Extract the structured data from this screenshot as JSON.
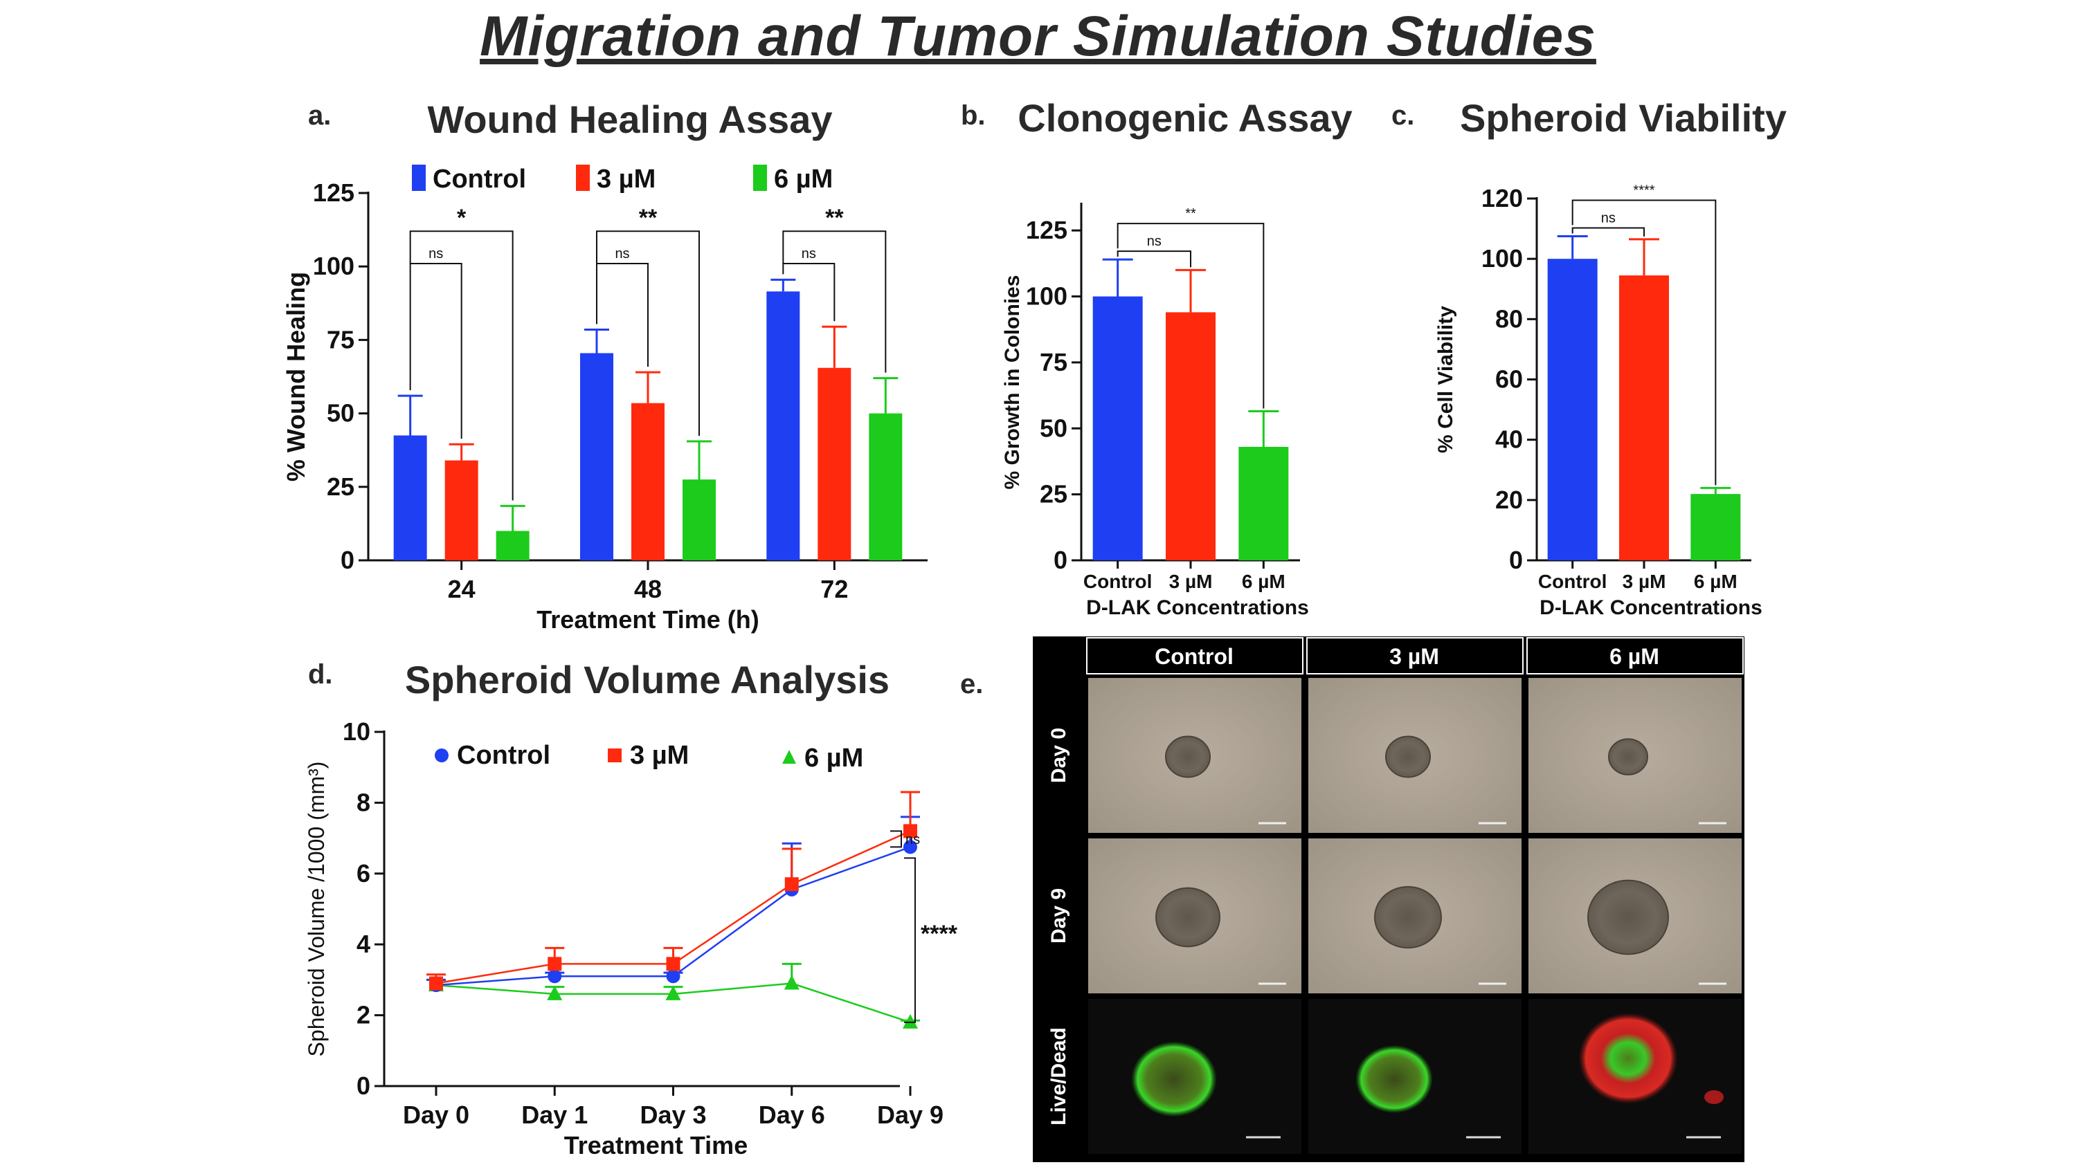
{
  "title": "Migration and Tumor Simulation Studies",
  "colors": {
    "control": "#1f3ff2",
    "low": "#ff2a0d",
    "high": "#1ccb1c"
  },
  "chart_data": [
    {
      "id": "a",
      "letter": "a.",
      "type": "bar",
      "title": "Wound Healing Assay",
      "xlabel": "Treatment Time (h)",
      "ylabel": "% Wound Healing",
      "categories": [
        "24",
        "48",
        "72"
      ],
      "ylim": [
        0,
        125
      ],
      "yticks": [
        0,
        25,
        50,
        75,
        100,
        125
      ],
      "legend_position": "top",
      "series": [
        {
          "name": "Control",
          "color_key": "control",
          "values": [
            42.5,
            70.5,
            91.5
          ],
          "errors": [
            13.5,
            8.0,
            4.0
          ]
        },
        {
          "name": "3 µM",
          "color_key": "low",
          "values": [
            34.0,
            53.5,
            65.5
          ],
          "errors": [
            5.5,
            10.5,
            14.0
          ]
        },
        {
          "name": "6 µM",
          "color_key": "high",
          "values": [
            10.0,
            27.5,
            50.0
          ],
          "errors": [
            8.5,
            13.0,
            12.0
          ]
        }
      ],
      "significance": [
        {
          "category": "24",
          "pair": [
            "Control",
            "3 µM"
          ],
          "label": "ns"
        },
        {
          "category": "24",
          "pair": [
            "Control",
            "6 µM"
          ],
          "label": "*"
        },
        {
          "category": "48",
          "pair": [
            "Control",
            "3 µM"
          ],
          "label": "ns"
        },
        {
          "category": "48",
          "pair": [
            "Control",
            "6 µM"
          ],
          "label": "**"
        },
        {
          "category": "72",
          "pair": [
            "Control",
            "3 µM"
          ],
          "label": "ns"
        },
        {
          "category": "72",
          "pair": [
            "Control",
            "6 µM"
          ],
          "label": "**"
        }
      ]
    },
    {
      "id": "b",
      "letter": "b.",
      "type": "bar",
      "title": "Clonogenic Assay",
      "xlabel": "D-LAK Concentrations",
      "ylabel": "% Growth in Colonies",
      "categories": [
        "Control",
        "3 µM",
        "6 µM"
      ],
      "ylim": [
        0,
        135
      ],
      "yticks": [
        0,
        25,
        50,
        75,
        100,
        125
      ],
      "values": [
        100,
        94,
        43
      ],
      "errors": [
        14,
        16,
        13.5
      ],
      "color_keys": [
        "control",
        "low",
        "high"
      ],
      "significance": [
        {
          "pair": [
            "Control",
            "3 µM"
          ],
          "label": "ns"
        },
        {
          "pair": [
            "Control",
            "6 µM"
          ],
          "label": "**"
        }
      ]
    },
    {
      "id": "c",
      "letter": "c.",
      "type": "bar",
      "title": "Spheroid Viability",
      "xlabel": "D-LAK Concentrations",
      "ylabel": "% Cell Viability",
      "categories": [
        "Control",
        "3 µM",
        "6 µM"
      ],
      "ylim": [
        0,
        120
      ],
      "yticks": [
        0,
        20,
        40,
        60,
        80,
        100,
        120
      ],
      "values": [
        100,
        94.5,
        22
      ],
      "errors": [
        7.5,
        12,
        2
      ],
      "color_keys": [
        "control",
        "low",
        "high"
      ],
      "significance": [
        {
          "pair": [
            "Control",
            "3 µM"
          ],
          "label": "ns"
        },
        {
          "pair": [
            "Control",
            "6 µM"
          ],
          "label": "****"
        }
      ]
    },
    {
      "id": "d",
      "letter": "d.",
      "type": "line",
      "title": "Spheroid Volume Analysis",
      "xlabel": "Treatment Time",
      "ylabel": "Spheroid Volume /1000 (mm³)",
      "categories": [
        "Day 0",
        "Day 1",
        "Day 3",
        "Day 6",
        "Day 9"
      ],
      "ylim": [
        0,
        10
      ],
      "yticks": [
        0,
        2,
        4,
        6,
        8,
        10
      ],
      "legend_position": "top",
      "series": [
        {
          "name": "Control",
          "color_key": "control",
          "marker": "circle",
          "values": [
            2.85,
            3.1,
            3.1,
            5.55,
            6.75
          ],
          "errors": [
            0.15,
            0.1,
            0.1,
            1.3,
            0.85
          ]
        },
        {
          "name": "3 µM",
          "color_key": "low",
          "marker": "square",
          "values": [
            2.9,
            3.45,
            3.45,
            5.7,
            7.2
          ],
          "errors": [
            0.25,
            0.45,
            0.45,
            1.0,
            1.1
          ]
        },
        {
          "name": "6 µM",
          "color_key": "high",
          "marker": "triangle",
          "values": [
            2.85,
            2.6,
            2.6,
            2.9,
            1.8
          ],
          "errors": [
            0.15,
            0.2,
            0.2,
            0.55,
            0.05
          ]
        }
      ],
      "significance": [
        {
          "pair": [
            "Control",
            "3 µM"
          ],
          "at": "Day 9",
          "label": "ns"
        },
        {
          "pair": [
            "3 µM",
            "6 µM"
          ],
          "at": "Day 9",
          "label": "****"
        }
      ]
    }
  ],
  "image_grid": {
    "letter": "e.",
    "columns": [
      "Control",
      "3 µM",
      "6 µM"
    ],
    "rows": [
      "Day 0",
      "Day 9",
      "Live/Dead"
    ]
  }
}
